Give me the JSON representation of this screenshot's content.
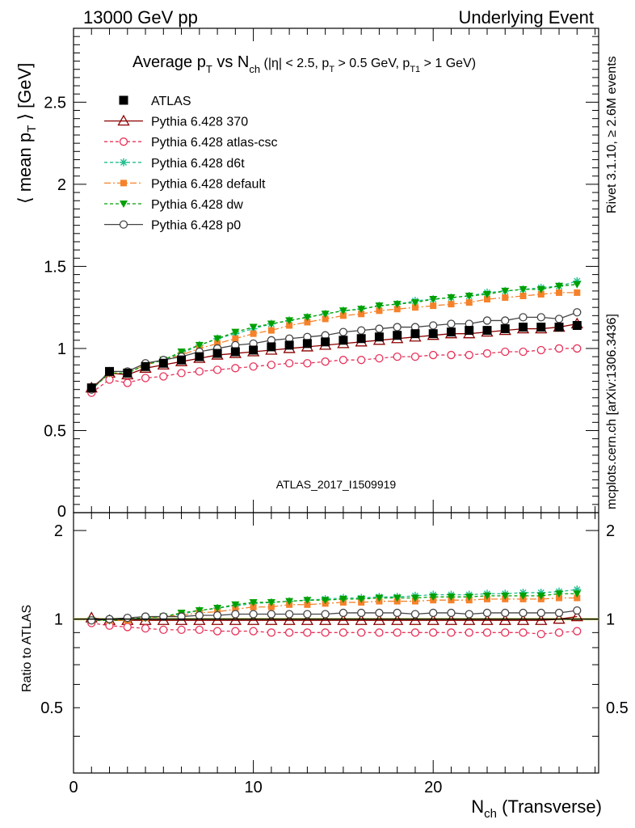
{
  "header": {
    "left": "13000 GeV pp",
    "right": "Underlying Event"
  },
  "side": {
    "rivet": "Rivet 3.1.10, ≥ 2.6M events",
    "mcplots": "mcplots.cern.ch [arXiv:1306.3436]"
  },
  "watermark": "ATLAS_2017_I1509919",
  "title": {
    "average": "Average p",
    "sub_t": "T",
    "vs": " vs N",
    "sub_ch": "ch",
    "cuts_a": " (|η| < 2.5, p",
    "cuts_b": " > 0.5 GeV, p",
    "sub_t1": "T1",
    "cuts_c": " > 1 GeV)"
  },
  "yaxis_main": {
    "pre": "⟨ mean p",
    "sub": "T",
    "post": " ⟩ [GeV]"
  },
  "yaxis_ratio": "Ratio to ATLAS",
  "xaxis": {
    "pre": "N",
    "sub": "ch",
    "post": " (Transverse)"
  },
  "chart_data": {
    "type": "line",
    "x": [
      1,
      2,
      3,
      4,
      5,
      6,
      7,
      8,
      9,
      10,
      11,
      12,
      13,
      14,
      15,
      16,
      17,
      18,
      19,
      20,
      21,
      22,
      23,
      24,
      25,
      26,
      27,
      28
    ],
    "xlim": [
      0,
      29.2
    ],
    "ylim_main": [
      0,
      2.95
    ],
    "ylim_ratio": [
      0.3,
      2.3
    ],
    "main_yticks": [
      "0.5",
      "1",
      "1.5",
      "2",
      "2.5"
    ],
    "ratio_yticks": [
      "0.5",
      "1",
      "2"
    ],
    "xticks": [
      "0",
      "10",
      "20"
    ],
    "legend_position": "top-left",
    "series": [
      {
        "name": "ATLAS",
        "color": "#000000",
        "marker": "square",
        "values": [
          0.76,
          0.86,
          0.85,
          0.89,
          0.91,
          0.93,
          0.95,
          0.97,
          0.98,
          0.99,
          1.01,
          1.02,
          1.03,
          1.04,
          1.05,
          1.06,
          1.07,
          1.08,
          1.09,
          1.09,
          1.1,
          1.11,
          1.11,
          1.12,
          1.13,
          1.13,
          1.13,
          1.14
        ],
        "ratio": [
          1.0,
          1.0,
          1.0,
          1.0,
          1.0,
          1.0,
          1.0,
          1.0,
          1.0,
          1.0,
          1.0,
          1.0,
          1.0,
          1.0,
          1.0,
          1.0,
          1.0,
          1.0,
          1.0,
          1.0,
          1.0,
          1.0,
          1.0,
          1.0,
          1.0,
          1.0,
          1.0,
          1.0
        ]
      },
      {
        "name": "Pythia 6.428 370",
        "color": "#8b0000",
        "marker": "triangle",
        "values": [
          0.76,
          0.85,
          0.84,
          0.88,
          0.9,
          0.92,
          0.94,
          0.96,
          0.97,
          0.98,
          0.99,
          1.0,
          1.01,
          1.02,
          1.03,
          1.04,
          1.05,
          1.06,
          1.07,
          1.08,
          1.09,
          1.09,
          1.1,
          1.11,
          1.12,
          1.12,
          1.13,
          1.15
        ],
        "ratio": [
          1.01,
          0.99,
          0.99,
          0.99,
          0.99,
          0.99,
          0.99,
          0.99,
          0.99,
          0.99,
          0.99,
          0.99,
          0.99,
          0.99,
          0.99,
          0.99,
          0.99,
          0.99,
          0.99,
          0.99,
          0.99,
          0.99,
          0.99,
          0.99,
          0.99,
          0.99,
          1.0,
          1.02
        ]
      },
      {
        "name": "Pythia 6.428 atlas-csc",
        "color": "#e8325a",
        "marker": "circle-open",
        "values": [
          0.73,
          0.81,
          0.79,
          0.82,
          0.83,
          0.85,
          0.86,
          0.87,
          0.88,
          0.89,
          0.9,
          0.91,
          0.91,
          0.92,
          0.93,
          0.93,
          0.94,
          0.95,
          0.95,
          0.96,
          0.96,
          0.96,
          0.97,
          0.98,
          0.98,
          0.99,
          1.0,
          1.0
        ],
        "ratio": [
          0.97,
          0.95,
          0.94,
          0.93,
          0.92,
          0.92,
          0.92,
          0.91,
          0.91,
          0.91,
          0.9,
          0.9,
          0.9,
          0.9,
          0.9,
          0.9,
          0.9,
          0.9,
          0.9,
          0.9,
          0.9,
          0.9,
          0.9,
          0.9,
          0.9,
          0.89,
          0.9,
          0.91
        ]
      },
      {
        "name": "Pythia 6.428 d6t",
        "color": "#1fbf8f",
        "marker": "star",
        "values": [
          0.75,
          0.85,
          0.85,
          0.9,
          0.93,
          0.97,
          1.02,
          1.06,
          1.09,
          1.12,
          1.15,
          1.17,
          1.19,
          1.21,
          1.23,
          1.24,
          1.26,
          1.27,
          1.29,
          1.3,
          1.31,
          1.32,
          1.34,
          1.35,
          1.36,
          1.37,
          1.38,
          1.41
        ],
        "ratio": [
          0.99,
          0.99,
          1.0,
          1.01,
          1.02,
          1.04,
          1.07,
          1.09,
          1.11,
          1.13,
          1.14,
          1.15,
          1.16,
          1.17,
          1.18,
          1.18,
          1.19,
          1.19,
          1.2,
          1.21,
          1.21,
          1.21,
          1.22,
          1.22,
          1.23,
          1.23,
          1.24,
          1.26
        ]
      },
      {
        "name": "Pythia 6.428 default",
        "color": "#f5822a",
        "marker": "square-filled",
        "values": [
          0.75,
          0.85,
          0.85,
          0.9,
          0.93,
          0.96,
          1.0,
          1.03,
          1.06,
          1.09,
          1.11,
          1.14,
          1.16,
          1.18,
          1.2,
          1.21,
          1.23,
          1.24,
          1.25,
          1.26,
          1.27,
          1.28,
          1.3,
          1.31,
          1.32,
          1.33,
          1.34,
          1.34
        ],
        "ratio": [
          0.99,
          0.99,
          0.99,
          1.01,
          1.02,
          1.03,
          1.05,
          1.06,
          1.08,
          1.1,
          1.1,
          1.12,
          1.12,
          1.13,
          1.14,
          1.14,
          1.15,
          1.15,
          1.15,
          1.16,
          1.16,
          1.16,
          1.17,
          1.17,
          1.17,
          1.17,
          1.18,
          1.18
        ]
      },
      {
        "name": "Pythia 6.428 dw",
        "color": "#00a000",
        "marker": "triangle-down",
        "values": [
          0.75,
          0.85,
          0.85,
          0.9,
          0.93,
          0.98,
          1.02,
          1.06,
          1.1,
          1.13,
          1.15,
          1.17,
          1.19,
          1.21,
          1.23,
          1.24,
          1.26,
          1.27,
          1.28,
          1.3,
          1.31,
          1.32,
          1.33,
          1.35,
          1.36,
          1.36,
          1.38,
          1.39
        ],
        "ratio": [
          0.99,
          0.99,
          1.0,
          1.01,
          1.02,
          1.05,
          1.07,
          1.09,
          1.12,
          1.14,
          1.14,
          1.15,
          1.16,
          1.16,
          1.17,
          1.17,
          1.18,
          1.18,
          1.18,
          1.19,
          1.19,
          1.19,
          1.2,
          1.2,
          1.2,
          1.2,
          1.22,
          1.22
        ]
      },
      {
        "name": "Pythia 6.428 p0",
        "color": "#444444",
        "marker": "circle-open",
        "values": [
          0.75,
          0.86,
          0.86,
          0.91,
          0.93,
          0.95,
          0.98,
          1.0,
          1.02,
          1.03,
          1.05,
          1.06,
          1.07,
          1.08,
          1.1,
          1.11,
          1.12,
          1.13,
          1.13,
          1.14,
          1.15,
          1.15,
          1.17,
          1.17,
          1.19,
          1.19,
          1.18,
          1.22
        ],
        "ratio": [
          0.99,
          1.0,
          1.01,
          1.02,
          1.02,
          1.02,
          1.03,
          1.03,
          1.04,
          1.04,
          1.04,
          1.04,
          1.04,
          1.04,
          1.05,
          1.05,
          1.05,
          1.05,
          1.04,
          1.05,
          1.05,
          1.04,
          1.05,
          1.05,
          1.05,
          1.05,
          1.05,
          1.07
        ]
      }
    ]
  }
}
